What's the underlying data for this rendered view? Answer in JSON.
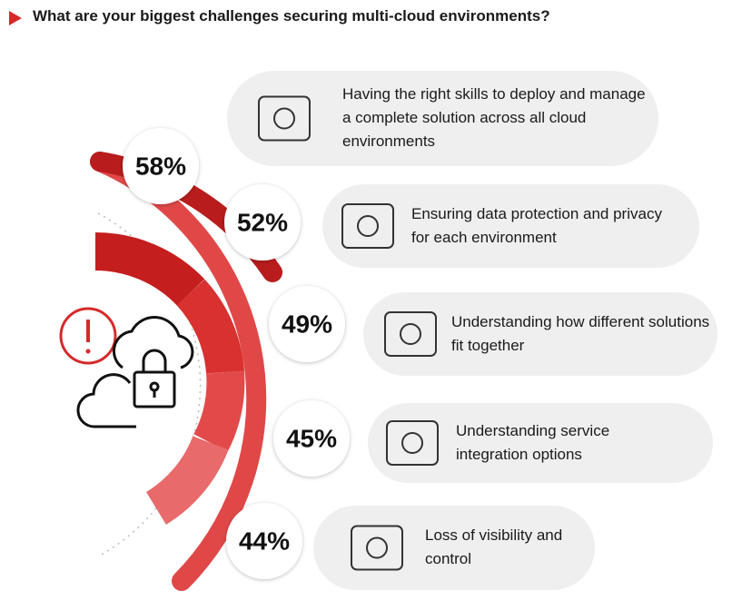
{
  "chart_data": {
    "type": "radial-badges",
    "title": "What are your biggest challenges securing multi-cloud environments?",
    "categories": [
      "Having the right skills to deploy and manage a complete solution across all cloud environments",
      "Ensuring data protection and privacy for each environment",
      "Understanding how different solutions fit together",
      "Understanding service integration options",
      "Loss of visibility and control"
    ],
    "values": [
      58,
      52,
      49,
      45,
      44
    ],
    "value_labels": [
      "58%",
      "52%",
      "49%",
      "45%",
      "44%"
    ],
    "color": "#d42a2a"
  }
}
